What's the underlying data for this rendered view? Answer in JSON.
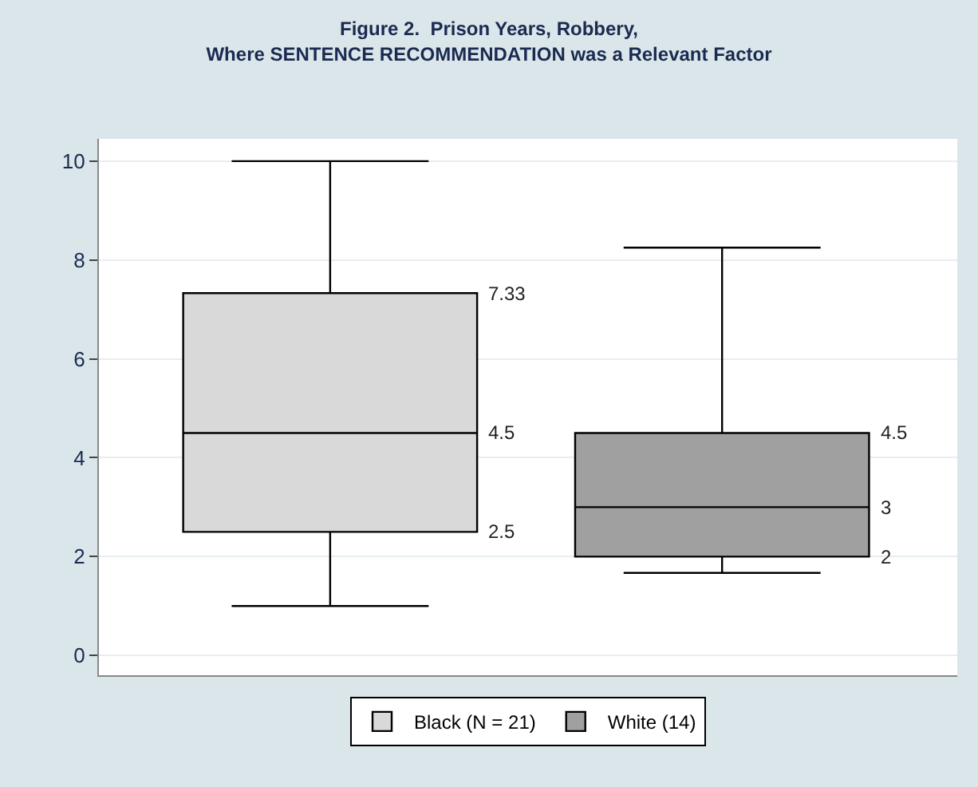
{
  "chart_data": {
    "type": "box",
    "title": "Figure 2.  Prison Years, Robbery,\nWhere SENTENCE RECOMMENDATION was a Relevant Factor",
    "categories": [
      null,
      null
    ],
    "series": [
      {
        "name": "Black (N = 21)",
        "color": "#d9d9d9",
        "boxes": [
          {
            "low": 1,
            "q1": 2.5,
            "median": 4.5,
            "q3": 7.33,
            "high": 10
          },
          null
        ]
      },
      {
        "name": "White (14)",
        "color": "#a0a0a0",
        "boxes": [
          null,
          {
            "low": 1.67,
            "q1": 2,
            "median": 3,
            "q3": 4.5,
            "high": 8.25
          }
        ]
      }
    ],
    "annotations": [
      "7.33",
      "4.5",
      "2.5",
      "4.5",
      "3",
      "2"
    ],
    "ylim": [
      -0.4,
      10.45
    ],
    "yticks": [
      0,
      2,
      4,
      6,
      8,
      10
    ],
    "grid": "y",
    "legend": "bottom"
  }
}
